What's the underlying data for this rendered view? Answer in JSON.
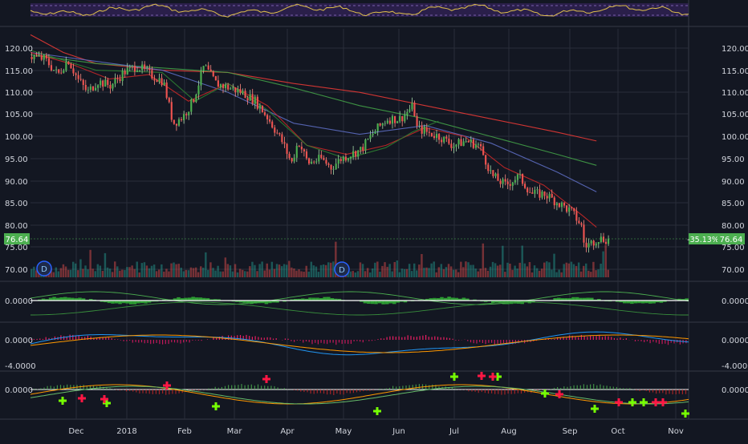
{
  "chart_data": {
    "type": "line",
    "title": "",
    "x_axis": {
      "labels": [
        "Dec",
        "2018",
        "Feb",
        "Mar",
        "Apr",
        "May",
        "Jun",
        "Jul",
        "Aug",
        "Sep",
        "Oct",
        "Nov"
      ]
    },
    "price_panel": {
      "type": "candlestick",
      "y_ticks": [
        "120.00",
        "115.00",
        "110.00",
        "105.00",
        "100.00",
        "95.00",
        "90.00",
        "85.00",
        "80.00",
        "75.00",
        "70.00"
      ],
      "ylim": [
        67.0,
        123.5
      ],
      "last_price": "76.64",
      "change_label": "-35.13%",
      "price_path": [
        [
          0,
          118.0
        ],
        [
          0.02,
          117.5
        ],
        [
          0.04,
          114.0
        ],
        [
          0.055,
          117.5
        ],
        [
          0.07,
          113.0
        ],
        [
          0.085,
          110.0
        ],
        [
          0.1,
          112.5
        ],
        [
          0.12,
          111.5
        ],
        [
          0.14,
          114.5
        ],
        [
          0.16,
          116.0
        ],
        [
          0.18,
          114.0
        ],
        [
          0.2,
          112.5
        ],
        [
          0.215,
          103.0
        ],
        [
          0.23,
          104.5
        ],
        [
          0.245,
          108.0
        ],
        [
          0.262,
          116.0
        ],
        [
          0.28,
          112.0
        ],
        [
          0.3,
          111.0
        ],
        [
          0.32,
          110.0
        ],
        [
          0.34,
          108.0
        ],
        [
          0.36,
          104.0
        ],
        [
          0.38,
          99.0
        ],
        [
          0.395,
          94.0
        ],
        [
          0.405,
          99.0
        ],
        [
          0.42,
          94.0
        ],
        [
          0.44,
          95.0
        ],
        [
          0.455,
          93.0
        ],
        [
          0.47,
          95.0
        ],
        [
          0.5,
          97.0
        ],
        [
          0.52,
          101.0
        ],
        [
          0.54,
          104.0
        ],
        [
          0.56,
          104.0
        ],
        [
          0.58,
          107.0
        ],
        [
          0.585,
          102.0
        ],
        [
          0.6,
          101.0
        ],
        [
          0.62,
          100.0
        ],
        [
          0.64,
          98.0
        ],
        [
          0.66,
          99.0
        ],
        [
          0.68,
          98.0
        ],
        [
          0.7,
          91.0
        ],
        [
          0.72,
          89.0
        ],
        [
          0.74,
          91.0
        ],
        [
          0.76,
          87.0
        ],
        [
          0.78,
          87.0
        ],
        [
          0.8,
          85.0
        ],
        [
          0.82,
          83.0
        ],
        [
          0.835,
          80.0
        ],
        [
          0.84,
          75.0
        ],
        [
          0.86,
          77.0
        ],
        [
          0.88,
          76.64
        ]
      ],
      "moving_averages": [
        {
          "color": "#e53935",
          "values": [
            [
              0,
              123.0
            ],
            [
              0.05,
              119.0
            ],
            [
              0.1,
              116.5
            ],
            [
              0.2,
              115.0
            ],
            [
              0.3,
              114.5
            ],
            [
              0.4,
              112.0
            ],
            [
              0.5,
              110.0
            ],
            [
              0.6,
              107.0
            ],
            [
              0.7,
              104.0
            ],
            [
              0.8,
              101.0
            ],
            [
              0.86,
              99.0
            ]
          ]
        },
        {
          "color": "#43a047",
          "values": [
            [
              0,
              118.5
            ],
            [
              0.1,
              116.5
            ],
            [
              0.2,
              115.5
            ],
            [
              0.3,
              114.5
            ],
            [
              0.4,
              111.0
            ],
            [
              0.5,
              107.0
            ],
            [
              0.6,
              104.0
            ],
            [
              0.7,
              100.0
            ],
            [
              0.8,
              96.0
            ],
            [
              0.86,
              93.5
            ]
          ]
        },
        {
          "color": "#5c6bc0",
          "values": [
            [
              0,
              119.0
            ],
            [
              0.1,
              117.0
            ],
            [
              0.2,
              115.0
            ],
            [
              0.3,
              110.0
            ],
            [
              0.4,
              103.0
            ],
            [
              0.5,
              100.5
            ],
            [
              0.6,
              102.5
            ],
            [
              0.7,
              98.5
            ],
            [
              0.8,
              92.0
            ],
            [
              0.86,
              87.5
            ]
          ]
        },
        {
          "color": "#c62828",
          "values": [
            [
              0,
              119.0
            ],
            [
              0.06,
              116.5
            ],
            [
              0.12,
              113.0
            ],
            [
              0.18,
              114.0
            ],
            [
              0.24,
              108.0
            ],
            [
              0.3,
              112.0
            ],
            [
              0.36,
              107.0
            ],
            [
              0.42,
              98.0
            ],
            [
              0.48,
              96.0
            ],
            [
              0.54,
              98.0
            ],
            [
              0.6,
              102.0
            ],
            [
              0.66,
              100.0
            ],
            [
              0.72,
              93.0
            ],
            [
              0.78,
              89.0
            ],
            [
              0.84,
              82.0
            ],
            [
              0.86,
              79.5
            ]
          ]
        },
        {
          "color": "#2e7d32",
          "values": [
            [
              0,
              119.5
            ],
            [
              0.1,
              115.0
            ],
            [
              0.2,
              114.5
            ],
            [
              0.25,
              108.0
            ],
            [
              0.3,
              112.0
            ],
            [
              0.36,
              106.0
            ],
            [
              0.42,
              98.0
            ],
            [
              0.48,
              95.0
            ],
            [
              0.54,
              97.5
            ],
            [
              0.58,
              101.0
            ],
            [
              0.62,
              103.5
            ]
          ]
        }
      ],
      "event_markers": [
        "D",
        "D"
      ]
    },
    "oscillators": [
      {
        "name": "",
        "value_label": "0.0000",
        "y_ticks": [
          "0.0000"
        ]
      },
      {
        "name": "",
        "value_label": "0.0000",
        "y_ticks": [
          "0.0000",
          "-4.0000"
        ]
      },
      {
        "name": "",
        "value_label": "0.0000",
        "y_ticks": [
          "0.0000"
        ]
      }
    ],
    "signals": {
      "buy_count": 11,
      "sell_count": 10
    },
    "colors": {
      "background": "#131722",
      "grid": "#2a2e39",
      "text": "#d1d4dc",
      "up": "#26a69a",
      "down": "#ef5350",
      "label_bg": "#4caf50",
      "rsi_band": "#2a1f4a",
      "rsi_line": "#e0c14a"
    }
  }
}
